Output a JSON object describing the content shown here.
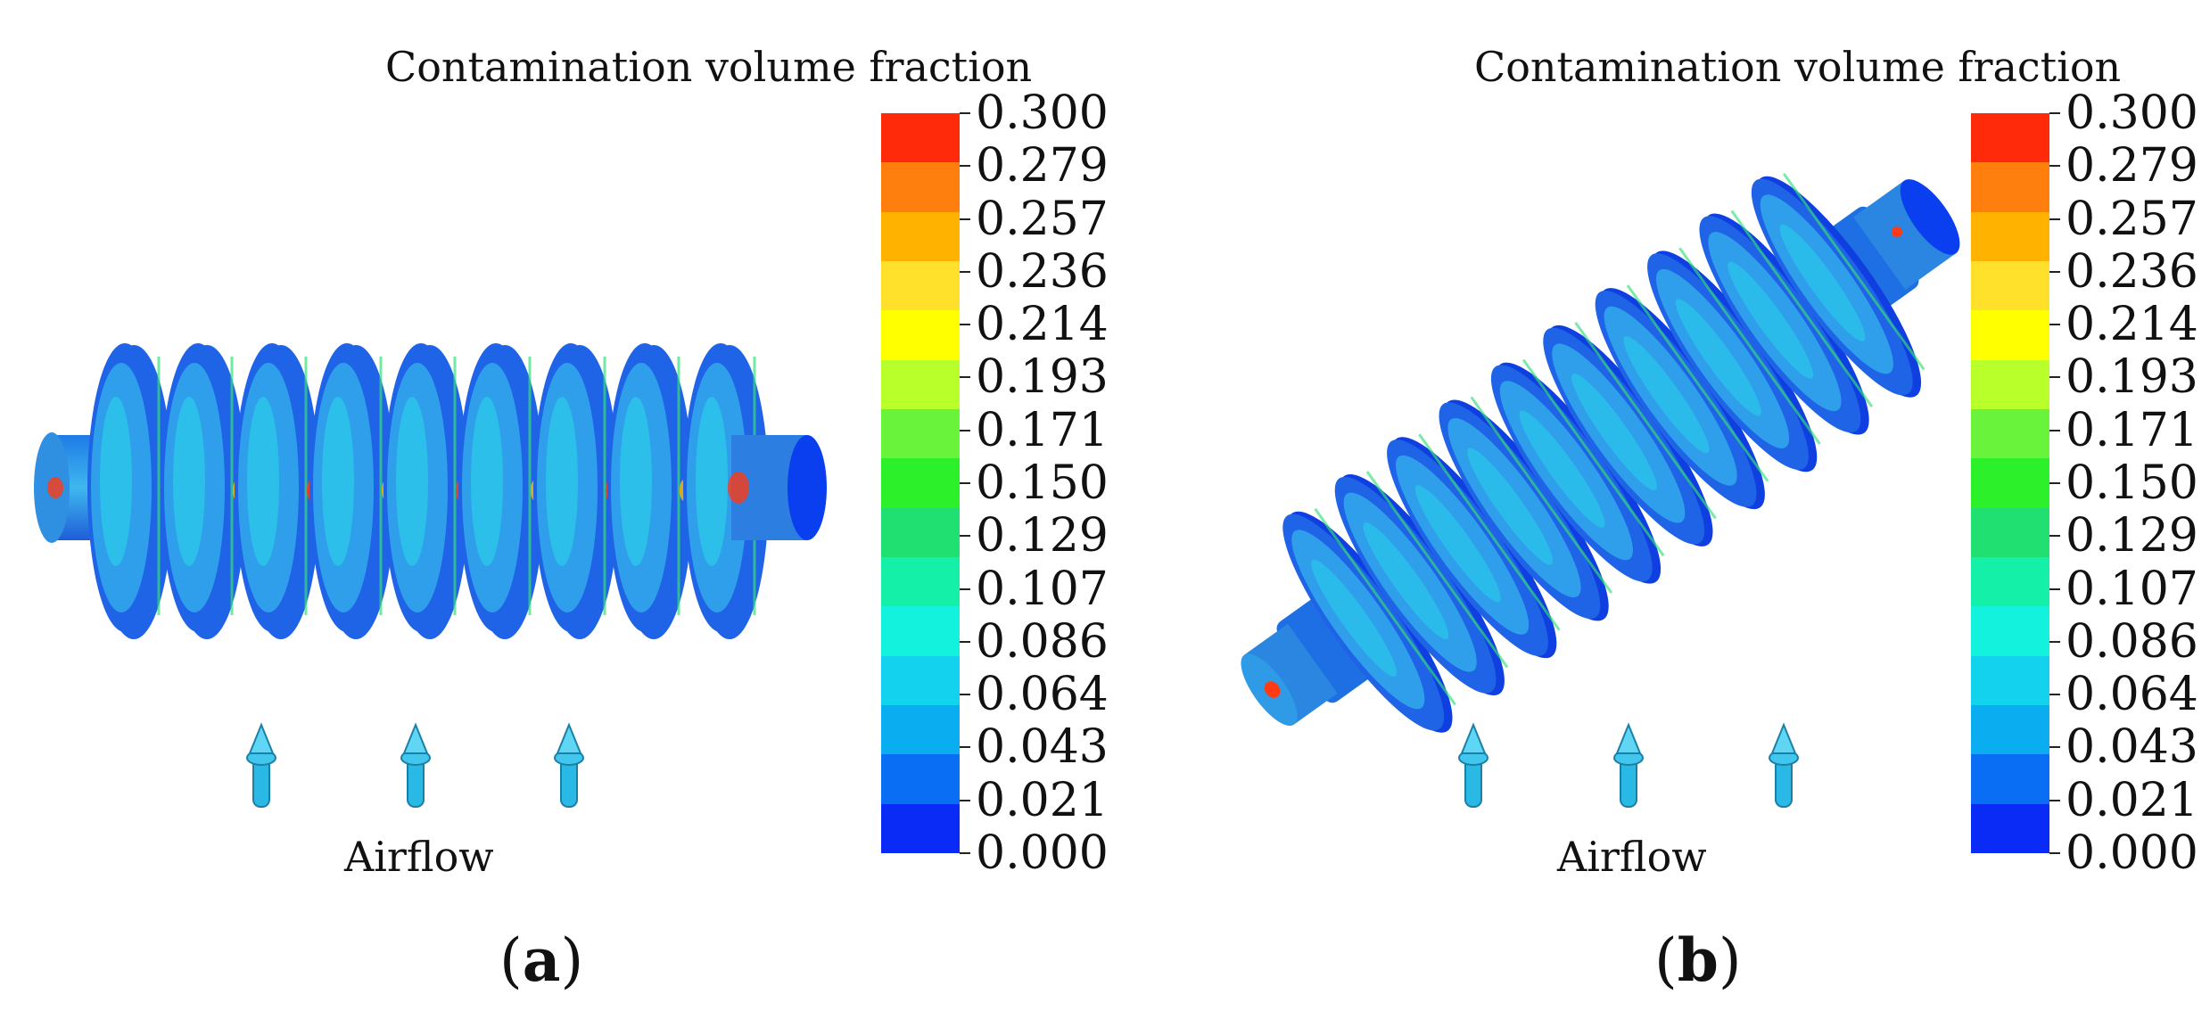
{
  "panels": [
    {
      "id": "a",
      "legend_title": "Contamination volume fraction",
      "airflow_label": "Airflow",
      "tag_open": "(",
      "tag_letter": "a",
      "tag_close": ")"
    },
    {
      "id": "b",
      "legend_title": "Contamination volume fraction",
      "airflow_label": "Airflow",
      "tag_open": "(",
      "tag_letter": "b",
      "tag_close": ")"
    }
  ],
  "colorbar": {
    "ticks": [
      "0.300",
      "0.279",
      "0.257",
      "0.236",
      "0.214",
      "0.193",
      "0.171",
      "0.150",
      "0.129",
      "0.107",
      "0.086",
      "0.064",
      "0.043",
      "0.021",
      "0.000"
    ],
    "colors": [
      "#ff2a0a",
      "#ff7f0e",
      "#ffb300",
      "#ffe02a",
      "#ffff00",
      "#b9ff2a",
      "#69f33a",
      "#2bf02a",
      "#1fe070",
      "#14f0a8",
      "#13f2dc",
      "#12d2ee",
      "#0aaef0",
      "#0a6ef5",
      "#0a2af5"
    ]
  },
  "colors": {
    "base": "#1f63e6",
    "light": "#33a9ec",
    "cyan": "#28d8e8",
    "hot": "#ff3a14",
    "arrow": "#29b9e4"
  }
}
